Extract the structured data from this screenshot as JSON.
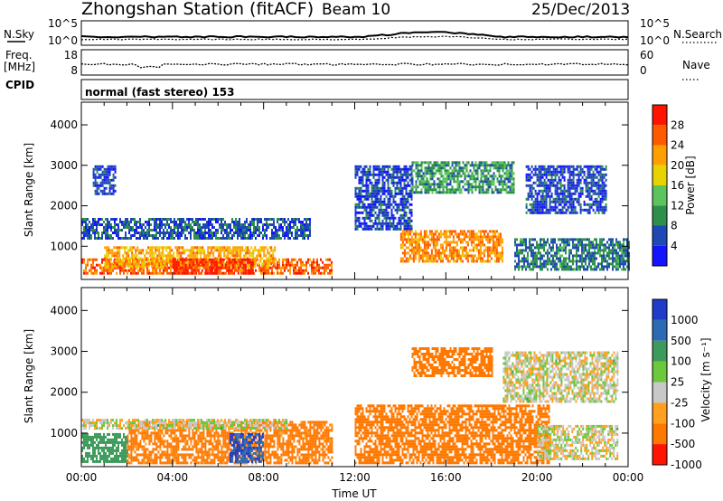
{
  "header": {
    "station": "Zhongshan Station (fitACF)",
    "beam": "Beam 10",
    "date": "25/Dec/2013"
  },
  "upper_panels": {
    "nsky_label": "N.Sky",
    "nsky_ticks": [
      "10^5",
      "10^0"
    ],
    "nsearch_label": "N.Search",
    "nsearch_ticks": [
      "10^5",
      "10^0"
    ],
    "freq_label_line1": "Freq.",
    "freq_label_line2": "[MHz]",
    "freq_ticks": [
      "18",
      "8"
    ],
    "nave_label": "Nave",
    "nave_ticks": [
      "60",
      "0"
    ],
    "cpid_label": "CPID",
    "cpid_text": "normal (fast stereo) 153"
  },
  "colors": {
    "power_scale": [
      "#1414ff",
      "#1e48b4",
      "#2c8f4a",
      "#5cc45c",
      "#e8d200",
      "#ffa000",
      "#ff5a00",
      "#ff1400"
    ],
    "velocity_scale": [
      "#1e3cc8",
      "#2c6ab4",
      "#3c9a5a",
      "#6cc83c",
      "#c8c8c8",
      "#ffa01e",
      "#ff7800",
      "#ff1400"
    ]
  },
  "chart_data": [
    {
      "type": "heatmap",
      "name": "power",
      "title": "",
      "xlabel": "Time UT",
      "ylabel": "Slant Range [km]",
      "x_ticks": [
        "00:00",
        "04:00",
        "08:00",
        "12:00",
        "16:00",
        "20:00",
        "00:00"
      ],
      "y_ticks": [
        1000,
        2000,
        3000,
        4000
      ],
      "xlim_hours": [
        0,
        24
      ],
      "ylim_km": [
        180,
        4560
      ],
      "colorbar_label": "Power [dB]",
      "colorbar_ticks": [
        4,
        8,
        12,
        16,
        20,
        24,
        28
      ],
      "colorbar_range": [
        0,
        30
      ],
      "regions": [
        {
          "t0": 0.0,
          "t1": 11.0,
          "r0": 300,
          "r1": 700,
          "value": 24
        },
        {
          "t0": 1.0,
          "t1": 8.5,
          "r0": 500,
          "r1": 1000,
          "value": 20
        },
        {
          "t0": 0.0,
          "t1": 10.0,
          "r0": 1200,
          "r1": 1700,
          "value": 6
        },
        {
          "t0": 4.0,
          "t1": 7.5,
          "r0": 350,
          "r1": 700,
          "value": 28
        },
        {
          "t0": 0.5,
          "t1": 1.5,
          "r0": 2300,
          "r1": 3000,
          "value": 5
        },
        {
          "t0": 12.0,
          "t1": 14.5,
          "r0": 1400,
          "r1": 3000,
          "value": 5
        },
        {
          "t0": 14.5,
          "t1": 19.0,
          "r0": 2300,
          "r1": 3100,
          "value": 10
        },
        {
          "t0": 14.0,
          "t1": 18.5,
          "r0": 600,
          "r1": 1400,
          "value": 22
        },
        {
          "t0": 19.0,
          "t1": 24.0,
          "r0": 400,
          "r1": 1200,
          "value": 8
        },
        {
          "t0": 19.5,
          "t1": 23.0,
          "r0": 1800,
          "r1": 3000,
          "value": 5
        }
      ]
    },
    {
      "type": "heatmap",
      "name": "velocity",
      "title": "",
      "xlabel": "Time UT",
      "ylabel": "Slant Range [km]",
      "x_ticks": [
        "00:00",
        "04:00",
        "08:00",
        "12:00",
        "16:00",
        "20:00",
        "00:00"
      ],
      "y_ticks": [
        1000,
        2000,
        3000,
        4000
      ],
      "xlim_hours": [
        0,
        24
      ],
      "ylim_km": [
        180,
        4560
      ],
      "colorbar_label": "Velocity [m s⁻¹]",
      "colorbar_ticks": [
        1000,
        500,
        100,
        25,
        -25,
        -100,
        -500,
        -1000
      ],
      "regions": [
        {
          "t0": 0.0,
          "t1": 2.0,
          "r0": 300,
          "r1": 1000,
          "value": 200
        },
        {
          "t0": 2.0,
          "t1": 11.0,
          "r0": 300,
          "r1": 1300,
          "value": -150
        },
        {
          "t0": 6.5,
          "t1": 8.0,
          "r0": 300,
          "r1": 1000,
          "value": 600
        },
        {
          "t0": 0.0,
          "t1": 9.0,
          "r0": 1150,
          "r1": 1350,
          "value": 0
        },
        {
          "t0": 12.0,
          "t1": 20.5,
          "r0": 300,
          "r1": 1700,
          "value": -200
        },
        {
          "t0": 14.5,
          "t1": 18.0,
          "r0": 2400,
          "r1": 3100,
          "value": -200
        },
        {
          "t0": 18.5,
          "t1": 23.5,
          "r0": 1800,
          "r1": 3000,
          "value": 0
        },
        {
          "t0": 20.0,
          "t1": 23.5,
          "r0": 400,
          "r1": 1200,
          "value": 0
        }
      ]
    }
  ]
}
